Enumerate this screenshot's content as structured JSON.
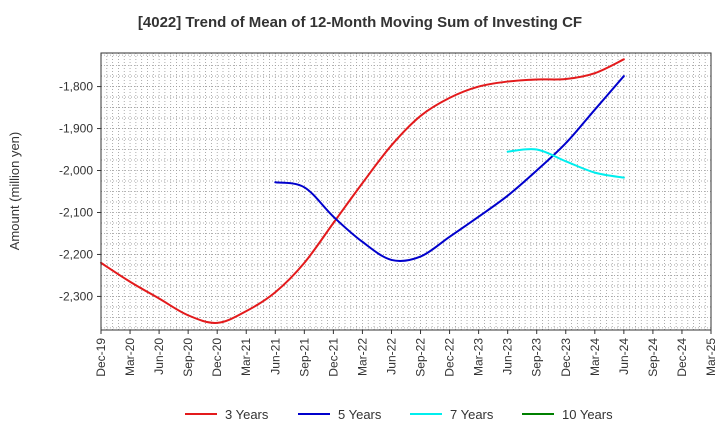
{
  "chart_data": {
    "type": "line",
    "title": "[4022]  Trend of Mean of 12-Month Moving Sum of Investing CF",
    "ylabel": "Amount (million yen)",
    "xlabel": "",
    "ylim": [
      -2380,
      -1720
    ],
    "yticks": [
      -1800,
      -1900,
      -2000,
      -2100,
      -2200,
      -2300
    ],
    "ytick_labels": [
      "-1,800",
      "-1,900",
      "-2,000",
      "-2,100",
      "-2,200",
      "-2,300"
    ],
    "categories": [
      "Dec-19",
      "Mar-20",
      "Jun-20",
      "Sep-20",
      "Dec-20",
      "Mar-21",
      "Jun-21",
      "Sep-21",
      "Dec-21",
      "Mar-22",
      "Jun-22",
      "Sep-22",
      "Dec-22",
      "Mar-23",
      "Jun-23",
      "Sep-23",
      "Dec-23",
      "Mar-24",
      "Jun-24",
      "Sep-24",
      "Dec-24",
      "Mar-25"
    ],
    "grid": true,
    "legend_position": "bottom",
    "series": [
      {
        "name": "3 Years",
        "color": "#e31a1c",
        "values": [
          -2220,
          -2265,
          -2305,
          -2345,
          -2363,
          -2335,
          -2290,
          -2220,
          -2125,
          -2030,
          -1940,
          -1870,
          -1827,
          -1800,
          -1788,
          -1783,
          -1782,
          -1768,
          -1735,
          null,
          null,
          null
        ]
      },
      {
        "name": "5 Years",
        "color": "#0000cc",
        "values": [
          null,
          null,
          null,
          null,
          null,
          null,
          -2028,
          -2040,
          -2110,
          -2170,
          -2213,
          -2205,
          -2158,
          -2110,
          -2060,
          -2000,
          -1935,
          -1855,
          -1775,
          null,
          null,
          null
        ]
      },
      {
        "name": "7 Years",
        "color": "#00eeee",
        "values": [
          null,
          null,
          null,
          null,
          null,
          null,
          null,
          null,
          null,
          null,
          null,
          null,
          null,
          null,
          -1955,
          -1950,
          -1978,
          -2005,
          -2017,
          null,
          null,
          null
        ]
      },
      {
        "name": "10 Years",
        "color": "#008000",
        "values": [
          null,
          null,
          null,
          null,
          null,
          null,
          null,
          null,
          null,
          null,
          null,
          null,
          null,
          null,
          null,
          null,
          null,
          null,
          null,
          null,
          null,
          null
        ]
      }
    ]
  }
}
